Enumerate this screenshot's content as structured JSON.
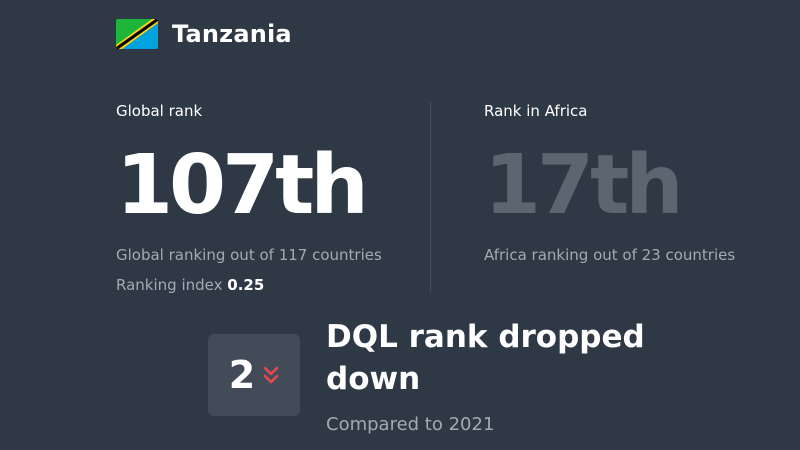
{
  "header": {
    "country_name": "Tanzania",
    "flag_icon": "tanzania-flag-icon",
    "flag_colors": {
      "green": "#1eb53a",
      "blue": "#00a3dd",
      "yellow": "#fcd116",
      "black": "#000000"
    }
  },
  "global": {
    "label": "Global rank",
    "value": "107th",
    "description": "Global ranking out of 117 countries",
    "index_label": "Ranking index",
    "index_value": "0.25"
  },
  "africa": {
    "label": "Rank in Africa",
    "value": "17th",
    "description": "Africa ranking out of 23 countries"
  },
  "dql": {
    "change_value": "2",
    "change_icon": "double-chevron-down-icon",
    "change_color": "#e5484d",
    "title": "DQL rank dropped down",
    "comparison": "Compared to 2021"
  },
  "colors": {
    "background": "#2f3946",
    "muted_text": "#a3aab2",
    "dim_rank": "#5d6670",
    "box": "#424b57"
  }
}
